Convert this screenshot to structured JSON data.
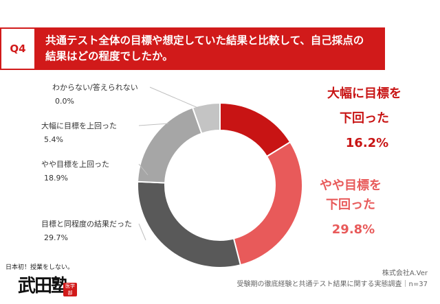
{
  "header": {
    "badge": "Q4",
    "question_line1": "共通テスト全体の目標や想定していた結果と比較して、自己採点の",
    "question_line2": "結果はどの程度でしたか。"
  },
  "chart_data": {
    "type": "pie",
    "subtype": "donut",
    "start": "top, clockwise",
    "slices": [
      {
        "label_line1": "大幅に目標を",
        "label_line2": "下回った",
        "value_text": "16.2%",
        "value": 16.2,
        "color": "#c81414"
      },
      {
        "label_line1": "やや目標を",
        "label_line2": "下回った",
        "value_text": "29.8%",
        "value": 29.8,
        "color": "#e85a5a"
      },
      {
        "label_line1": "目標と同程度の結果だった",
        "value_text": "29.7%",
        "value": 29.7,
        "color": "#595959"
      },
      {
        "label_line1": "やや目標を上回った",
        "value_text": "18.9%",
        "value": 18.9,
        "color": "#a6a6a6"
      },
      {
        "label_line1": "大幅に目標を上回った",
        "value_text": "5.4%",
        "value": 5.4,
        "color": "#c4c4c4"
      },
      {
        "label_line1": "わからない/答えられない",
        "value_text": "0.0%",
        "value": 0.0,
        "color": "#dddddd"
      }
    ]
  },
  "branding": {
    "logo_tagline": "日本初！授業をしない。",
    "logo_name": "武田塾",
    "logo_stamp": "医学部"
  },
  "source": {
    "company": "株式会社A.Ver",
    "survey": "受験期の徹底経験と共通テスト結果に関する実態調査｜n=37"
  }
}
